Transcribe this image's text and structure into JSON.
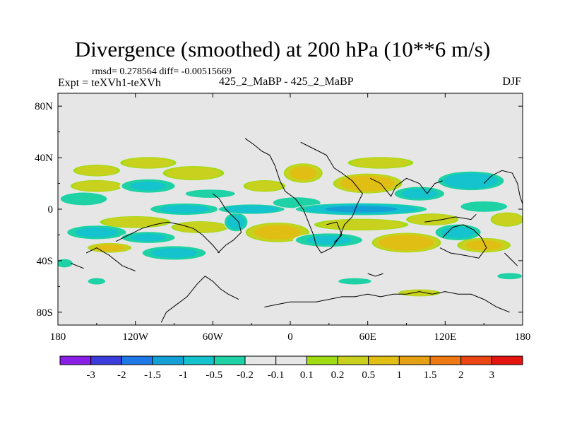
{
  "title": "Divergence (smoothed) at 200 hPa (10**6 m/s)",
  "stats": "rmsd= 0.278564 diff= -0.00515669",
  "expt": "Expt = teXVh1-teXVh",
  "case": "425_2_MaBP - 425_2_MaBP",
  "season": "DJF",
  "chart_data": {
    "type": "heatmap",
    "title": "Divergence (smoothed) at 200 hPa (10**6 m/s)",
    "xlabel": "",
    "ylabel": "",
    "xlim": [
      -180,
      180
    ],
    "ylim": [
      -90,
      90
    ],
    "x_ticks": [
      {
        "value": -180,
        "label": "180"
      },
      {
        "value": -120,
        "label": "120W"
      },
      {
        "value": -60,
        "label": "60W"
      },
      {
        "value": 0,
        "label": "0"
      },
      {
        "value": 60,
        "label": "60E"
      },
      {
        "value": 120,
        "label": "120E"
      },
      {
        "value": 180,
        "label": "180"
      }
    ],
    "y_ticks": [
      {
        "value": 80,
        "label": "80N"
      },
      {
        "value": 40,
        "label": "40N"
      },
      {
        "value": 0,
        "label": "0"
      },
      {
        "value": -40,
        "label": "40S"
      },
      {
        "value": -80,
        "label": "80S"
      }
    ],
    "colorbar": {
      "labels": [
        "-3",
        "-2",
        "-1.5",
        "-1",
        "-0.5",
        "-0.2",
        "-0.1",
        "0.1",
        "0.2",
        "0.5",
        "1",
        "1.5",
        "2",
        "3"
      ],
      "colors": [
        "#8a1ee6",
        "#3c3cdc",
        "#1e78e6",
        "#12a0d7",
        "#14c3cd",
        "#1ed2a5",
        "#e6e6e6",
        "#a0dc14",
        "#c8d21e",
        "#e1be14",
        "#e6a014",
        "#ee7812",
        "#eb4614",
        "#e6140f"
      ]
    },
    "regions": [
      {
        "lon": -160,
        "lat": 8,
        "rlon": 22,
        "rlat": 6,
        "value": -0.35
      },
      {
        "lon": -150,
        "lat": -18,
        "rlon": 26,
        "rlat": 6,
        "value": -0.6
      },
      {
        "lon": -150,
        "lat": 18,
        "rlon": 22,
        "rlat": 5,
        "value": 0.4
      },
      {
        "lon": -150,
        "lat": 30,
        "rlon": 20,
        "rlat": 5,
        "value": 0.3
      },
      {
        "lon": -140,
        "lat": -30,
        "rlon": 18,
        "rlat": 4,
        "value": 0.6
      },
      {
        "lon": -120,
        "lat": -10,
        "rlon": 30,
        "rlat": 5,
        "value": 0.35
      },
      {
        "lon": -110,
        "lat": -22,
        "rlon": 24,
        "rlat": 5,
        "value": -0.5
      },
      {
        "lon": -110,
        "lat": 18,
        "rlon": 24,
        "rlat": 6,
        "value": -0.5
      },
      {
        "lon": -110,
        "lat": 36,
        "rlon": 24,
        "rlat": 5,
        "value": 0.3
      },
      {
        "lon": -90,
        "lat": -34,
        "rlon": 28,
        "rlat": 6,
        "value": -0.6
      },
      {
        "lon": -82,
        "lat": 0,
        "rlon": 30,
        "rlat": 5,
        "value": -0.6
      },
      {
        "lon": -75,
        "lat": 28,
        "rlon": 26,
        "rlat": 6,
        "value": 0.35
      },
      {
        "lon": -70,
        "lat": -14,
        "rlon": 24,
        "rlat": 5,
        "value": 0.4
      },
      {
        "lon": -62,
        "lat": 12,
        "rlon": 24,
        "rlat": 4,
        "value": -0.3
      },
      {
        "lon": -42,
        "lat": -10,
        "rlon": 10,
        "rlat": 8,
        "value": -0.7
      },
      {
        "lon": -30,
        "lat": 0,
        "rlon": 28,
        "rlat": 4,
        "value": -0.9
      },
      {
        "lon": -20,
        "lat": 18,
        "rlon": 18,
        "rlat": 5,
        "value": 0.3
      },
      {
        "lon": -10,
        "lat": -18,
        "rlon": 26,
        "rlat": 8,
        "value": 0.7
      },
      {
        "lon": 5,
        "lat": 5,
        "rlon": 22,
        "rlat": 5,
        "value": -0.4
      },
      {
        "lon": 10,
        "lat": 28,
        "rlon": 16,
        "rlat": 8,
        "value": 0.6
      },
      {
        "lon": 30,
        "lat": -24,
        "rlon": 30,
        "rlat": 6,
        "value": -0.5
      },
      {
        "lon": 55,
        "lat": 0,
        "rlon": 55,
        "rlat": 5,
        "value": -1.1
      },
      {
        "lon": 55,
        "lat": -12,
        "rlon": 40,
        "rlat": 5,
        "value": 0.35
      },
      {
        "lon": 60,
        "lat": 20,
        "rlon": 28,
        "rlat": 8,
        "value": 0.9
      },
      {
        "lon": 70,
        "lat": 36,
        "rlon": 28,
        "rlat": 5,
        "value": 0.3
      },
      {
        "lon": 90,
        "lat": -26,
        "rlon": 28,
        "rlat": 8,
        "value": 0.9
      },
      {
        "lon": 100,
        "lat": 12,
        "rlon": 22,
        "rlat": 6,
        "value": -0.6
      },
      {
        "lon": 110,
        "lat": -8,
        "rlon": 22,
        "rlat": 5,
        "value": 0.4
      },
      {
        "lon": 130,
        "lat": -18,
        "rlon": 20,
        "rlat": 7,
        "value": -0.6
      },
      {
        "lon": 140,
        "lat": 22,
        "rlon": 28,
        "rlat": 8,
        "value": -0.9
      },
      {
        "lon": 150,
        "lat": -28,
        "rlon": 22,
        "rlat": 6,
        "value": 0.6
      },
      {
        "lon": 150,
        "lat": 2,
        "rlon": 22,
        "rlat": 5,
        "value": -0.35
      },
      {
        "lon": 168,
        "lat": -8,
        "rlon": 14,
        "rlat": 6,
        "value": 0.4
      },
      {
        "lon": -150,
        "lat": -56,
        "rlon": 8,
        "rlat": 3,
        "value": -0.4
      },
      {
        "lon": -175,
        "lat": -42,
        "rlon": 8,
        "rlat": 4,
        "value": -0.3
      },
      {
        "lon": 50,
        "lat": -56,
        "rlon": 16,
        "rlat": 3,
        "value": -0.3
      },
      {
        "lon": 100,
        "lat": -65,
        "rlon": 18,
        "rlat": 3,
        "value": 0.3
      },
      {
        "lon": 170,
        "lat": -52,
        "rlon": 12,
        "rlat": 3,
        "value": -0.3
      }
    ]
  }
}
